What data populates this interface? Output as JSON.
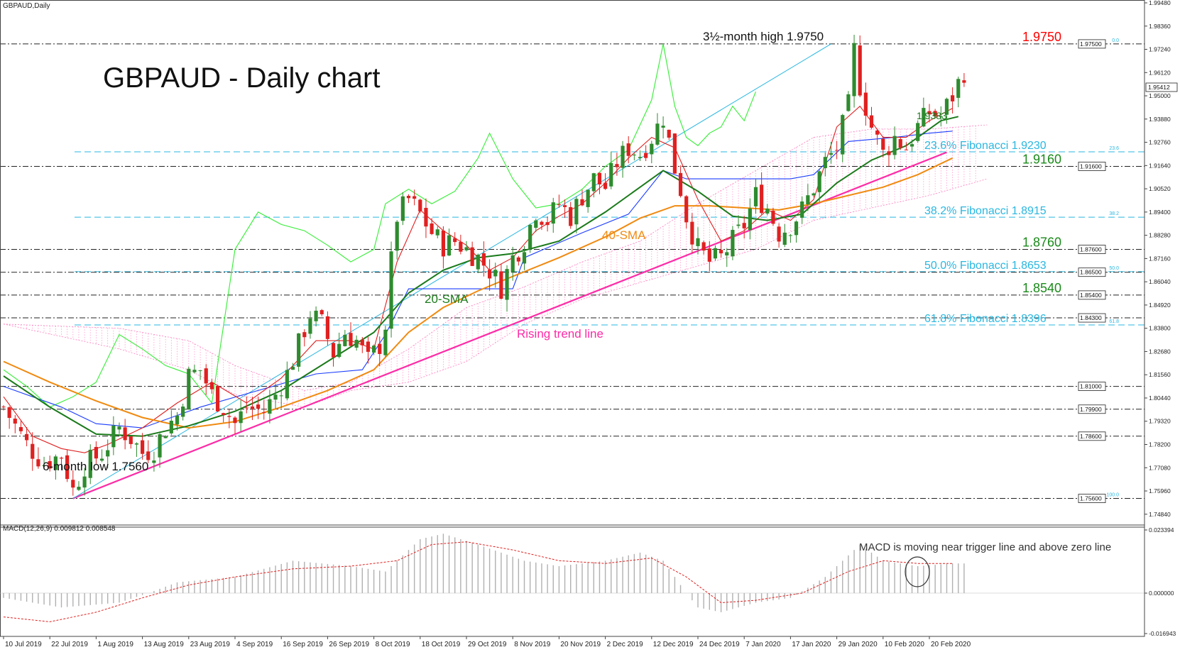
{
  "symbol_label": "GBPAUD,Daily",
  "title": "GBPAUD - Daily chart",
  "macd_label": "MACD(12,26,9) 0.009812 0.008548",
  "macd_annotation": "MACD is moving near trigger line and above zero line",
  "annotations": {
    "high": "3½-month high 1.9750",
    "low": "6-month low 1.7560",
    "sma20": "20-SMA",
    "sma40": "40-SMA",
    "trend": "Rising trend line",
    "tenkan_value": "1.9383"
  },
  "colors": {
    "bull": "#2e8b2e",
    "bear": "#e02020",
    "sma20": "#1a7a1a",
    "sma40": "#f08a10",
    "tenkan": "#e02020",
    "kijun": "#1a3cff",
    "chikou": "#33ee33",
    "trend": "#ff2aa6",
    "fib": "#2ab7e0",
    "cloud": "#ff7fbf",
    "macd_hist": "#b0b0b0",
    "macd_signal": "#e02020"
  },
  "chart_data": {
    "type": "candlestick",
    "price_axis": {
      "min": 1.7432,
      "max": 1.9948,
      "ticks": [
        "1.99480",
        "1.98360",
        "1.97240",
        "1.96120",
        "1.95000",
        "1.93880",
        "1.92760",
        "1.91640",
        "1.90520",
        "1.89400",
        "1.88280",
        "1.87160",
        "1.86040",
        "1.84920",
        "1.83800",
        "1.82680",
        "1.81560",
        "1.80440",
        "1.79320",
        "1.78200",
        "1.77080",
        "1.75960",
        "1.74840"
      ]
    },
    "x_axis": {
      "labels": [
        {
          "text": "10 Jul 2019",
          "index": 0
        },
        {
          "text": "22 Jul 2019",
          "index": 8
        },
        {
          "text": "1 Aug 2019",
          "index": 16
        },
        {
          "text": "13 Aug 2019",
          "index": 24
        },
        {
          "text": "23 Aug 2019",
          "index": 32
        },
        {
          "text": "4 Sep 2019",
          "index": 40
        },
        {
          "text": "16 Sep 2019",
          "index": 48
        },
        {
          "text": "26 Sep 2019",
          "index": 56
        },
        {
          "text": "8 Oct 2019",
          "index": 64
        },
        {
          "text": "18 Oct 2019",
          "index": 72
        },
        {
          "text": "29 Oct 2019",
          "index": 80
        },
        {
          "text": "8 Nov 2019",
          "index": 88
        },
        {
          "text": "20 Nov 2019",
          "index": 96
        },
        {
          "text": "2 Dec 2019",
          "index": 104
        },
        {
          "text": "12 Dec 2019",
          "index": 112
        },
        {
          "text": "24 Dec 2019",
          "index": 120
        },
        {
          "text": "7 Jan 2020",
          "index": 128
        },
        {
          "text": "17 Jan 2020",
          "index": 136
        },
        {
          "text": "29 Jan 2020",
          "index": 144
        },
        {
          "text": "10 Feb 2020",
          "index": 152
        },
        {
          "text": "20 Feb 2020",
          "index": 160
        }
      ],
      "bar_count": 163
    },
    "key_levels": [
      {
        "price": 1.975,
        "label": "1.9750",
        "box": "1.97500",
        "color": "#ff0000",
        "dash": "dashdot"
      },
      {
        "price": 1.923,
        "label": "23.6% Fibonacci 1.9230",
        "small": "23.6",
        "color": "#2ab7e0",
        "dash": "dash"
      },
      {
        "price": 1.916,
        "label": "1.9160",
        "box": "1.91600",
        "color": "#1a8a1a",
        "dash": "dashdot"
      },
      {
        "price": 1.8915,
        "label": "38.2% Fibonacci 1.8915",
        "small": "38.2",
        "color": "#2ab7e0",
        "dash": "dash"
      },
      {
        "price": 1.876,
        "label": "1.8760",
        "box": "1.87600",
        "color": "#1a8a1a",
        "dash": "dashdot"
      },
      {
        "price": 1.8653,
        "label": "50.0% Fibonacci 1.8653",
        "small": "50.0",
        "color": "#2ab7e0",
        "dash": "dash"
      },
      {
        "price": 1.865,
        "label": "",
        "box": "1.86500",
        "color": "#222222",
        "dash": "dashdot"
      },
      {
        "price": 1.854,
        "label": "1.8540",
        "box": "1.85400",
        "color": "#1a8a1a",
        "dash": "dashdot"
      },
      {
        "price": 1.843,
        "label": "",
        "box": "1.84300",
        "color": "#222222",
        "dash": "dashdot"
      },
      {
        "price": 1.8396,
        "label": "61.8% Fibonacci 1.8396",
        "small": "61.8",
        "color": "#2ab7e0",
        "dash": "dash"
      },
      {
        "price": 1.81,
        "label": "",
        "box": "1.81000",
        "color": "#222222",
        "dash": "dashdot"
      },
      {
        "price": 1.799,
        "label": "",
        "box": "1.79900",
        "color": "#222222",
        "dash": "dashdot"
      },
      {
        "price": 1.786,
        "label": "",
        "box": "1.78600",
        "color": "#222222",
        "dash": "dashdot"
      },
      {
        "price": 1.756,
        "label": "",
        "box": "1.75600",
        "color": "#222222",
        "dash": "dashdot",
        "small": "100.0"
      },
      {
        "price": 1.975,
        "small": "0.0"
      }
    ],
    "current_price_box": "1.95412",
    "current_price": 1.95412,
    "trend_line": {
      "from": {
        "index": 12,
        "price": 1.756
      },
      "to": {
        "index": 163,
        "price": 1.9228
      }
    },
    "fib_channel_line": {
      "from": {
        "index": 12,
        "price": 1.756
      },
      "to": {
        "index": 143,
        "price": 1.975
      }
    },
    "close_path": [
      [
        0,
        1.8
      ],
      [
        4,
        1.782
      ],
      [
        7,
        1.773
      ],
      [
        10,
        1.777
      ],
      [
        12,
        1.76
      ],
      [
        14,
        1.772
      ],
      [
        17,
        1.778
      ],
      [
        20,
        1.79
      ],
      [
        22,
        1.785
      ],
      [
        24,
        1.778
      ],
      [
        26,
        1.78
      ],
      [
        28,
        1.79
      ],
      [
        30,
        1.796
      ],
      [
        32,
        1.815
      ],
      [
        34,
        1.818
      ],
      [
        36,
        1.806
      ],
      [
        38,
        1.8
      ],
      [
        40,
        1.792
      ],
      [
        42,
        1.8
      ],
      [
        45,
        1.798
      ],
      [
        47,
        1.806
      ],
      [
        49,
        1.816
      ],
      [
        51,
        1.83
      ],
      [
        53,
        1.845
      ],
      [
        55,
        1.84
      ],
      [
        57,
        1.826
      ],
      [
        59,
        1.836
      ],
      [
        61,
        1.832
      ],
      [
        63,
        1.822
      ],
      [
        65,
        1.83
      ],
      [
        66,
        1.84
      ],
      [
        67,
        1.87
      ],
      [
        68,
        1.892
      ],
      [
        70,
        1.9
      ],
      [
        72,
        1.893
      ],
      [
        74,
        1.884
      ],
      [
        76,
        1.878
      ],
      [
        78,
        1.88
      ],
      [
        80,
        1.876
      ],
      [
        82,
        1.872
      ],
      [
        84,
        1.866
      ],
      [
        86,
        1.858
      ],
      [
        88,
        1.872
      ],
      [
        90,
        1.88
      ],
      [
        92,
        1.895
      ],
      [
        94,
        1.89
      ],
      [
        96,
        1.898
      ],
      [
        98,
        1.892
      ],
      [
        100,
        1.902
      ],
      [
        102,
        1.91
      ],
      [
        104,
        1.906
      ],
      [
        106,
        1.918
      ],
      [
        108,
        1.925
      ],
      [
        110,
        1.922
      ],
      [
        112,
        1.93
      ],
      [
        114,
        1.94
      ],
      [
        115,
        1.928
      ],
      [
        116,
        1.915
      ],
      [
        117,
        1.905
      ],
      [
        118,
        1.892
      ],
      [
        120,
        1.876
      ],
      [
        122,
        1.87
      ],
      [
        124,
        1.872
      ],
      [
        126,
        1.88
      ],
      [
        128,
        1.888
      ],
      [
        130,
        1.902
      ],
      [
        132,
        1.896
      ],
      [
        134,
        1.884
      ],
      [
        136,
        1.888
      ],
      [
        138,
        1.895
      ],
      [
        140,
        1.906
      ],
      [
        142,
        1.918
      ],
      [
        144,
        1.925
      ],
      [
        146,
        1.945
      ],
      [
        147,
        1.972
      ],
      [
        148,
        1.955
      ],
      [
        150,
        1.935
      ],
      [
        152,
        1.922
      ],
      [
        154,
        1.93
      ],
      [
        156,
        1.925
      ],
      [
        158,
        1.935
      ],
      [
        160,
        1.942
      ],
      [
        162,
        1.94
      ],
      [
        164,
        1.95
      ],
      [
        166,
        1.962
      ]
    ],
    "sma20_path": [
      [
        0,
        1.815
      ],
      [
        8,
        1.8
      ],
      [
        16,
        1.787
      ],
      [
        24,
        1.786
      ],
      [
        32,
        1.791
      ],
      [
        40,
        1.798
      ],
      [
        48,
        1.808
      ],
      [
        56,
        1.822
      ],
      [
        64,
        1.836
      ],
      [
        70,
        1.855
      ],
      [
        76,
        1.866
      ],
      [
        82,
        1.872
      ],
      [
        88,
        1.874
      ],
      [
        96,
        1.88
      ],
      [
        104,
        1.894
      ],
      [
        110,
        1.906
      ],
      [
        114,
        1.914
      ],
      [
        120,
        1.904
      ],
      [
        126,
        1.892
      ],
      [
        132,
        1.89
      ],
      [
        138,
        1.893
      ],
      [
        144,
        1.908
      ],
      [
        150,
        1.919
      ],
      [
        156,
        1.926
      ],
      [
        162,
        1.938
      ],
      [
        165,
        1.94
      ]
    ],
    "sma40_path": [
      [
        0,
        1.822
      ],
      [
        8,
        1.812
      ],
      [
        16,
        1.803
      ],
      [
        24,
        1.795
      ],
      [
        32,
        1.79
      ],
      [
        40,
        1.793
      ],
      [
        48,
        1.8
      ],
      [
        56,
        1.808
      ],
      [
        64,
        1.818
      ],
      [
        70,
        1.836
      ],
      [
        76,
        1.848
      ],
      [
        82,
        1.856
      ],
      [
        88,
        1.863
      ],
      [
        96,
        1.872
      ],
      [
        104,
        1.882
      ],
      [
        110,
        1.891
      ],
      [
        116,
        1.897
      ],
      [
        122,
        1.897
      ],
      [
        128,
        1.896
      ],
      [
        134,
        1.895
      ],
      [
        140,
        1.898
      ],
      [
        146,
        1.902
      ],
      [
        152,
        1.906
      ],
      [
        158,
        1.912
      ],
      [
        164,
        1.92
      ]
    ],
    "tenkan_path": [
      [
        0,
        1.805
      ],
      [
        5,
        1.786
      ],
      [
        10,
        1.78
      ],
      [
        14,
        1.778
      ],
      [
        18,
        1.782
      ],
      [
        24,
        1.79
      ],
      [
        30,
        1.802
      ],
      [
        36,
        1.812
      ],
      [
        42,
        1.802
      ],
      [
        48,
        1.814
      ],
      [
        54,
        1.832
      ],
      [
        60,
        1.832
      ],
      [
        64,
        1.828
      ],
      [
        68,
        1.87
      ],
      [
        72,
        1.895
      ],
      [
        76,
        1.885
      ],
      [
        80,
        1.878
      ],
      [
        84,
        1.866
      ],
      [
        88,
        1.872
      ],
      [
        92,
        1.885
      ],
      [
        96,
        1.892
      ],
      [
        100,
        1.898
      ],
      [
        104,
        1.908
      ],
      [
        108,
        1.92
      ],
      [
        112,
        1.93
      ],
      [
        116,
        1.925
      ],
      [
        120,
        1.9
      ],
      [
        124,
        1.88
      ],
      [
        128,
        1.885
      ],
      [
        132,
        1.895
      ],
      [
        136,
        1.89
      ],
      [
        140,
        1.9
      ],
      [
        144,
        1.935
      ],
      [
        148,
        1.945
      ],
      [
        152,
        1.93
      ],
      [
        156,
        1.93
      ],
      [
        160,
        1.938
      ],
      [
        164,
        1.944
      ]
    ],
    "kijun_path": [
      [
        0,
        1.81
      ],
      [
        10,
        1.8
      ],
      [
        16,
        1.792
      ],
      [
        24,
        1.79
      ],
      [
        34,
        1.8
      ],
      [
        44,
        1.808
      ],
      [
        54,
        1.816
      ],
      [
        62,
        1.818
      ],
      [
        66,
        1.835
      ],
      [
        70,
        1.857
      ],
      [
        80,
        1.857
      ],
      [
        88,
        1.857
      ],
      [
        90,
        1.872
      ],
      [
        100,
        1.884
      ],
      [
        108,
        1.893
      ],
      [
        114,
        1.914
      ],
      [
        118,
        1.91
      ],
      [
        126,
        1.91
      ],
      [
        136,
        1.91
      ],
      [
        140,
        1.912
      ],
      [
        146,
        1.928
      ],
      [
        154,
        1.93
      ],
      [
        160,
        1.932
      ],
      [
        164,
        1.933
      ]
    ],
    "chikou_path": [
      [
        0,
        1.818
      ],
      [
        4,
        1.81
      ],
      [
        8,
        1.8
      ],
      [
        12,
        1.805
      ],
      [
        16,
        1.812
      ],
      [
        20,
        1.835
      ],
      [
        24,
        1.828
      ],
      [
        28,
        1.82
      ],
      [
        32,
        1.816
      ],
      [
        36,
        1.802
      ],
      [
        40,
        1.876
      ],
      [
        44,
        1.894
      ],
      [
        48,
        1.888
      ],
      [
        52,
        1.885
      ],
      [
        56,
        1.878
      ],
      [
        60,
        1.87
      ],
      [
        64,
        1.876
      ],
      [
        66,
        1.898
      ],
      [
        70,
        1.905
      ],
      [
        74,
        1.898
      ],
      [
        78,
        1.904
      ],
      [
        82,
        1.92
      ],
      [
        84,
        1.932
      ],
      [
        88,
        1.91
      ],
      [
        92,
        1.896
      ],
      [
        96,
        1.898
      ],
      [
        100,
        1.905
      ],
      [
        104,
        1.916
      ],
      [
        108,
        1.924
      ],
      [
        112,
        1.948
      ],
      [
        114,
        1.975
      ],
      [
        116,
        1.945
      ],
      [
        118,
        1.93
      ],
      [
        120,
        1.926
      ],
      [
        122,
        1.932
      ],
      [
        124,
        1.935
      ],
      [
        126,
        1.945
      ],
      [
        128,
        1.938
      ],
      [
        130,
        1.952
      ]
    ],
    "cloud_upper": [
      [
        0,
        1.84
      ],
      [
        20,
        1.838
      ],
      [
        32,
        1.832
      ],
      [
        40,
        1.82
      ],
      [
        52,
        1.808
      ],
      [
        60,
        1.812
      ],
      [
        70,
        1.828
      ],
      [
        80,
        1.848
      ],
      [
        90,
        1.858
      ],
      [
        100,
        1.87
      ],
      [
        110,
        1.88
      ],
      [
        120,
        1.898
      ],
      [
        130,
        1.914
      ],
      [
        140,
        1.93
      ],
      [
        150,
        1.934
      ],
      [
        160,
        1.934
      ],
      [
        170,
        1.936
      ]
    ],
    "cloud_lower": [
      [
        0,
        1.84
      ],
      [
        20,
        1.828
      ],
      [
        32,
        1.818
      ],
      [
        40,
        1.806
      ],
      [
        52,
        1.8
      ],
      [
        60,
        1.808
      ],
      [
        70,
        1.812
      ],
      [
        80,
        1.822
      ],
      [
        90,
        1.84
      ],
      [
        100,
        1.852
      ],
      [
        110,
        1.86
      ],
      [
        120,
        1.868
      ],
      [
        130,
        1.876
      ],
      [
        140,
        1.89
      ],
      [
        150,
        1.896
      ],
      [
        160,
        1.902
      ],
      [
        170,
        1.91
      ]
    ],
    "macd_axis": {
      "ticks": [
        "0.023394",
        "0.000000",
        "-0.016943"
      ],
      "zero": 0,
      "max": 0.023394,
      "min": -0.016943
    },
    "macd_hist_path": [
      [
        0,
        -0.002
      ],
      [
        10,
        -0.006
      ],
      [
        20,
        -0.004
      ],
      [
        30,
        0.004
      ],
      [
        40,
        0.006
      ],
      [
        50,
        0.012
      ],
      [
        60,
        0.01
      ],
      [
        66,
        0.008
      ],
      [
        72,
        0.02
      ],
      [
        76,
        0.022
      ],
      [
        82,
        0.018
      ],
      [
        90,
        0.012
      ],
      [
        96,
        0.01
      ],
      [
        104,
        0.012
      ],
      [
        110,
        0.015
      ],
      [
        114,
        0.012
      ],
      [
        120,
        -0.006
      ],
      [
        124,
        -0.008
      ],
      [
        130,
        -0.004
      ],
      [
        136,
        -0.002
      ],
      [
        142,
        0.006
      ],
      [
        148,
        0.018
      ],
      [
        152,
        0.012
      ],
      [
        158,
        0.01
      ],
      [
        164,
        0.011
      ]
    ],
    "macd_signal_path": [
      [
        0,
        -0.01
      ],
      [
        8,
        -0.012
      ],
      [
        16,
        -0.008
      ],
      [
        24,
        -0.002
      ],
      [
        32,
        0.003
      ],
      [
        40,
        0.006
      ],
      [
        50,
        0.009
      ],
      [
        60,
        0.01
      ],
      [
        68,
        0.012
      ],
      [
        74,
        0.018
      ],
      [
        80,
        0.019
      ],
      [
        88,
        0.016
      ],
      [
        96,
        0.012
      ],
      [
        104,
        0.011
      ],
      [
        112,
        0.013
      ],
      [
        118,
        0.006
      ],
      [
        124,
        -0.004
      ],
      [
        130,
        -0.003
      ],
      [
        138,
        0.0
      ],
      [
        146,
        0.008
      ],
      [
        152,
        0.012
      ],
      [
        158,
        0.011
      ],
      [
        164,
        0.011
      ]
    ]
  }
}
